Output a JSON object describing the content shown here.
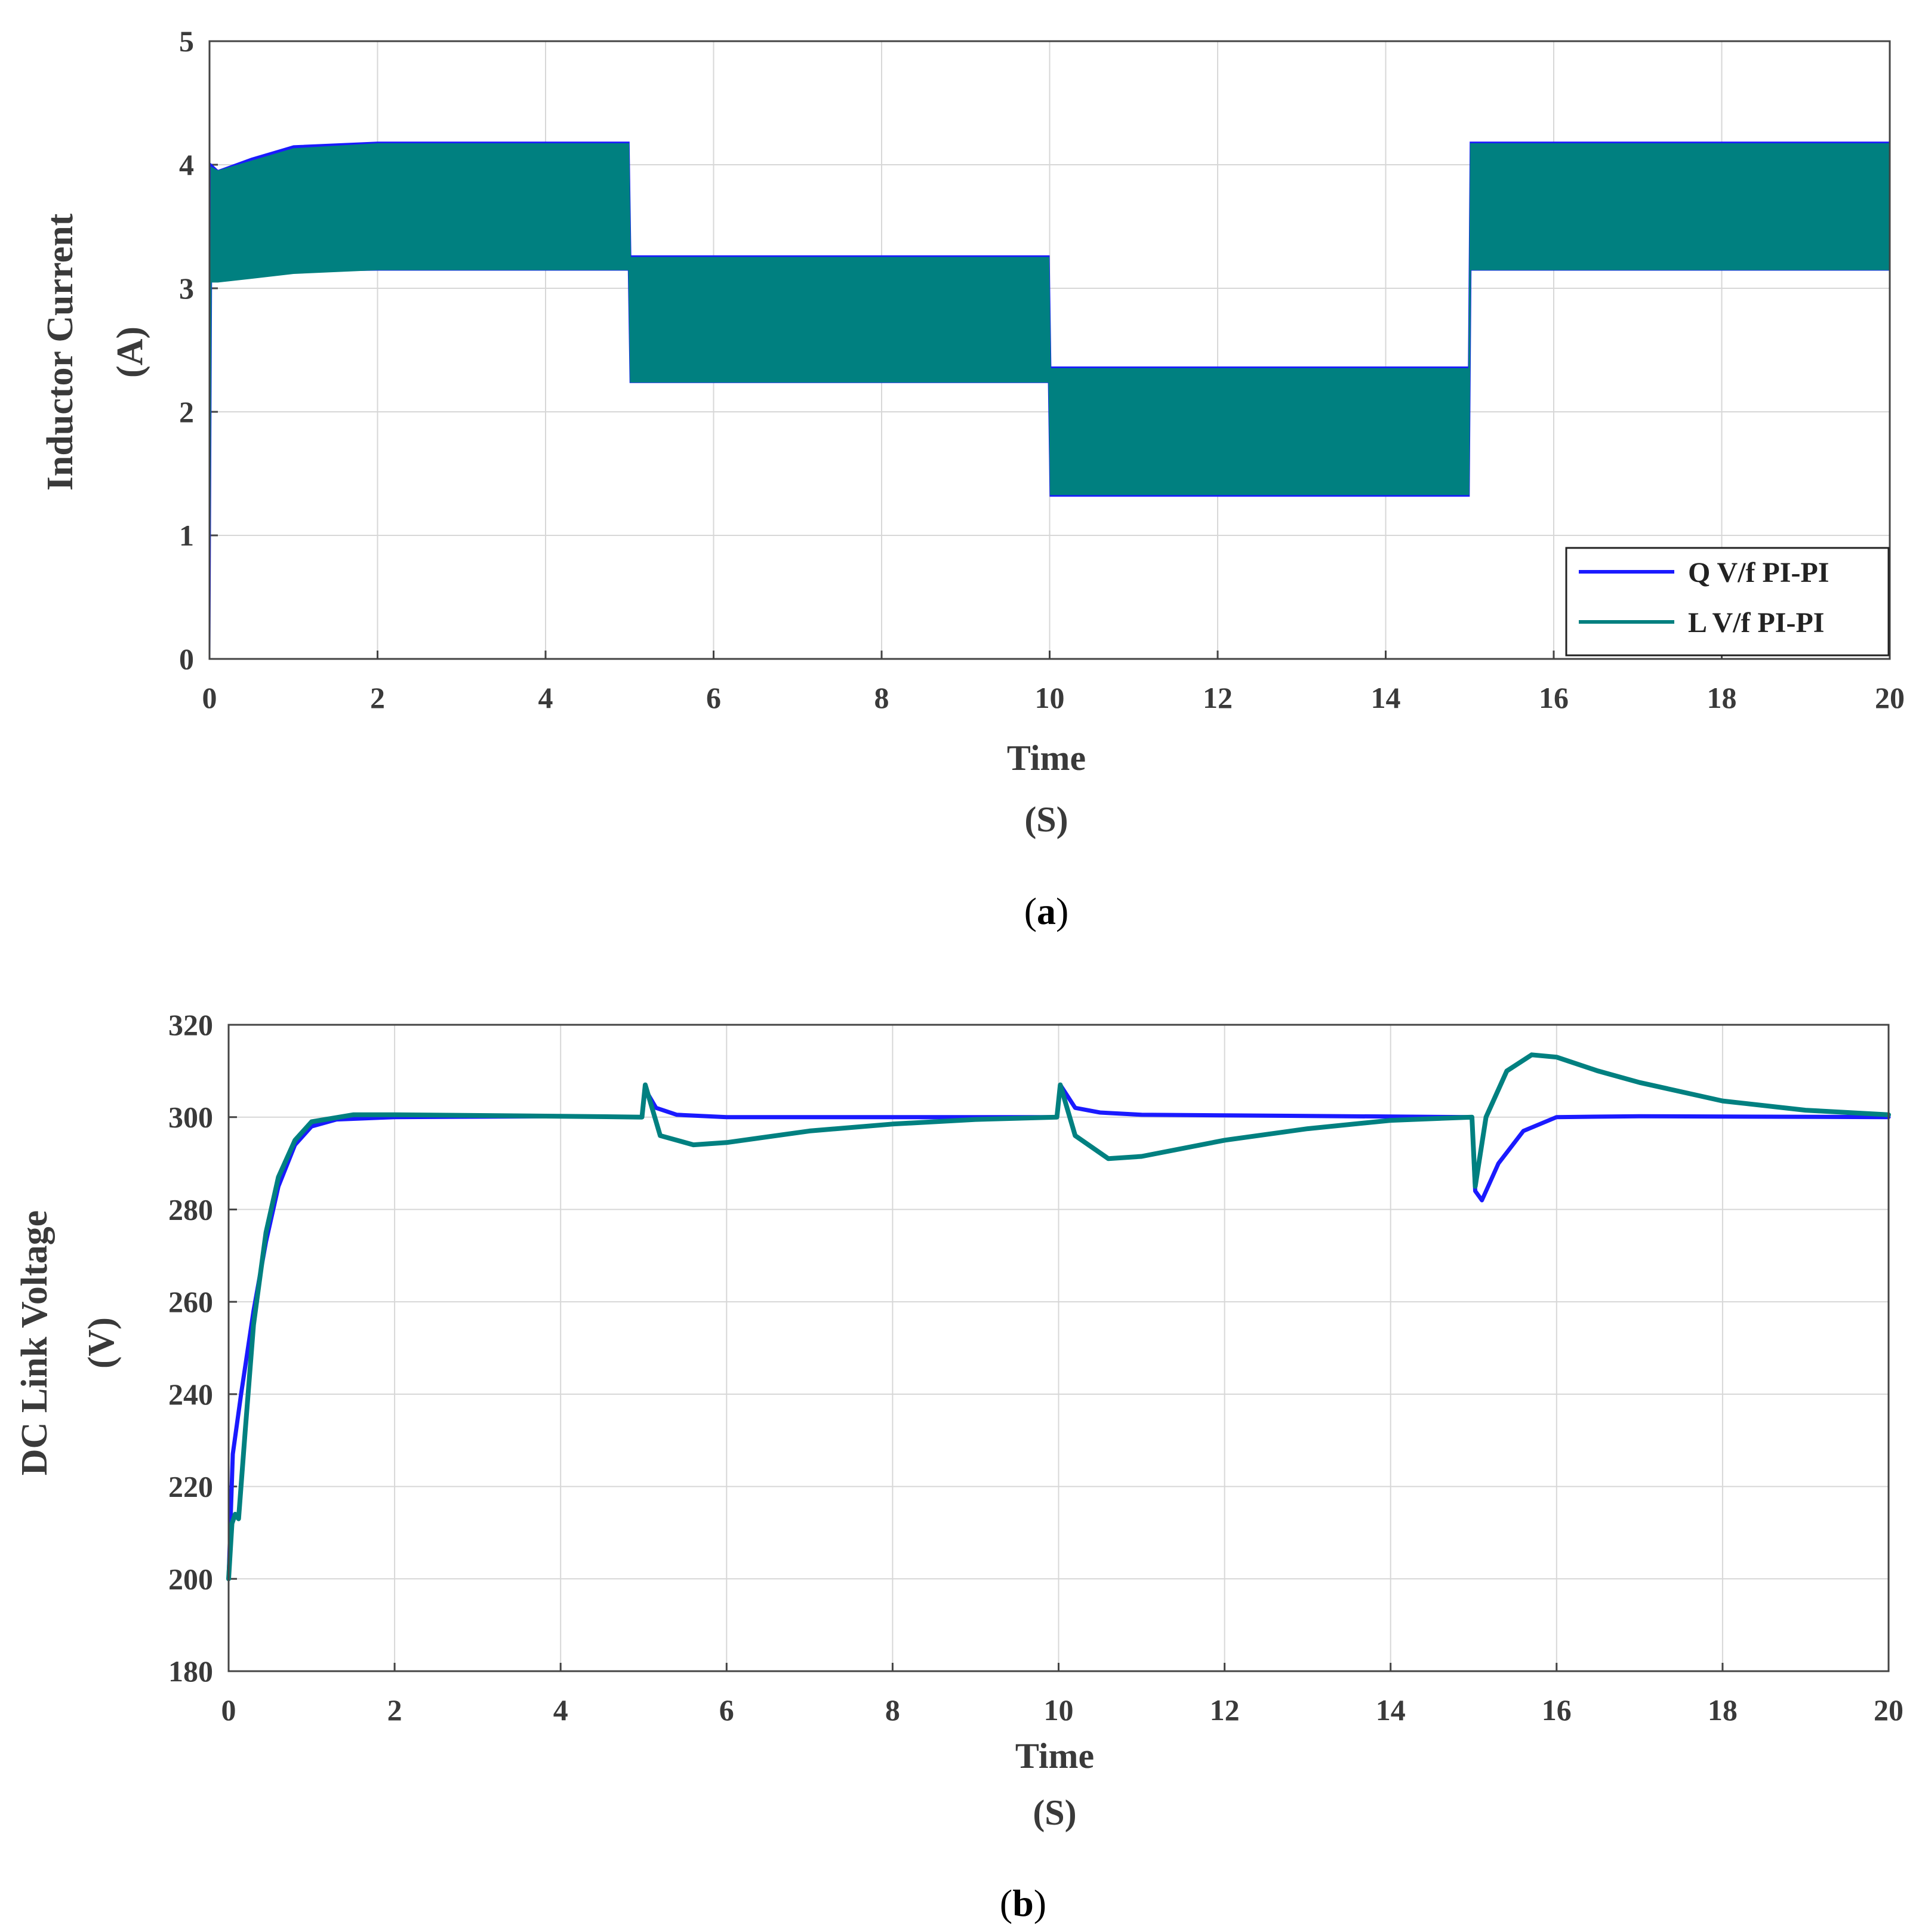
{
  "colors": {
    "q_series": "#1a1aff",
    "l_series": "#008080",
    "grid": "#d7d7d7",
    "axis": "#444444"
  },
  "chart_data": [
    {
      "id": "a",
      "type": "area",
      "caption_letter": "a",
      "caption_open": "(",
      "caption_close": ")",
      "xlabel": "Time",
      "xlabel_unit": "(S)",
      "ylabel": "Inductor Current",
      "ylabel_unit": "(A)",
      "xlim": [
        0,
        20
      ],
      "ylim": [
        0,
        5
      ],
      "xticks": [
        "0",
        "2",
        "4",
        "6",
        "8",
        "10",
        "12",
        "14",
        "16",
        "18",
        "20"
      ],
      "yticks": [
        "0",
        "1",
        "2",
        "3",
        "4",
        "5"
      ],
      "grid": true,
      "legend_position": "bottom-right",
      "legend": [
        "Q V/f PI-PI",
        "L V/f PI-PI"
      ],
      "series": [
        {
          "name": "Q V/f PI-PI",
          "color_key": "q_series",
          "note": "ripple band, lower and upper envelope",
          "x": [
            0,
            0.02,
            0.1,
            0.5,
            1,
            2,
            4,
            4.99,
            5.01,
            7,
            9.99,
            10.01,
            12,
            14.99,
            15.01,
            17,
            20
          ],
          "lower": [
            0,
            3.1,
            3.1,
            3.12,
            3.14,
            3.15,
            3.15,
            3.15,
            2.24,
            2.24,
            2.24,
            1.32,
            1.32,
            1.32,
            3.15,
            3.15,
            3.15
          ],
          "upper": [
            0,
            4.0,
            3.95,
            4.05,
            4.15,
            4.18,
            4.18,
            4.18,
            3.26,
            3.26,
            3.26,
            2.36,
            2.36,
            2.36,
            4.18,
            4.18,
            4.18
          ]
        },
        {
          "name": "L V/f PI-PI",
          "color_key": "l_series",
          "note": "ripple band, lower and upper envelope",
          "x": [
            0,
            0.02,
            0.1,
            0.5,
            1,
            2,
            4,
            4.99,
            5.01,
            7,
            9.99,
            10.01,
            12,
            14.99,
            15.01,
            17,
            20
          ],
          "lower": [
            0,
            3.05,
            3.05,
            3.08,
            3.12,
            3.15,
            3.15,
            3.15,
            2.24,
            2.24,
            2.24,
            1.33,
            1.33,
            1.33,
            3.15,
            3.15,
            3.15
          ],
          "upper": [
            0,
            3.98,
            3.95,
            4.03,
            4.13,
            4.17,
            4.17,
            4.17,
            3.25,
            3.25,
            3.25,
            2.35,
            2.35,
            2.35,
            4.17,
            4.17,
            4.17
          ]
        }
      ]
    },
    {
      "id": "b",
      "type": "line",
      "caption_letter": "b",
      "caption_open": "(",
      "caption_close": ")",
      "xlabel": "Time",
      "xlabel_unit": "(S)",
      "ylabel": "DC Link Voltage",
      "ylabel_unit": "(V)",
      "xlim": [
        0,
        20
      ],
      "ylim": [
        180,
        320
      ],
      "xticks": [
        "0",
        "2",
        "4",
        "6",
        "8",
        "10",
        "12",
        "14",
        "16",
        "18",
        "20"
      ],
      "yticks": [
        "180",
        "200",
        "220",
        "240",
        "260",
        "280",
        "300",
        "320"
      ],
      "grid": true,
      "series": [
        {
          "name": "Q V/f PI-PI",
          "color_key": "q_series",
          "x": [
            0,
            0.05,
            0.15,
            0.3,
            0.45,
            0.6,
            0.8,
            1.0,
            1.3,
            2,
            4,
            4.98,
            5.02,
            5.15,
            5.4,
            6,
            9.98,
            10.02,
            10.2,
            10.5,
            11,
            14.98,
            15.02,
            15.1,
            15.3,
            15.6,
            16,
            17,
            20
          ],
          "y": [
            200,
            227,
            240,
            258,
            273,
            285,
            294,
            298,
            299.5,
            300,
            300.2,
            300,
            306,
            302,
            300.5,
            300,
            300,
            307,
            302,
            301,
            300.5,
            300,
            284,
            282,
            290,
            297,
            300,
            300.2,
            300
          ]
        },
        {
          "name": "L V/f PI-PI",
          "color_key": "l_series",
          "x": [
            0,
            0.04,
            0.08,
            0.12,
            0.2,
            0.3,
            0.45,
            0.6,
            0.8,
            1.0,
            1.5,
            2,
            4,
            4.98,
            5.02,
            5.2,
            5.6,
            6,
            7,
            8,
            9,
            9.98,
            10.02,
            10.2,
            10.6,
            11,
            12,
            13,
            14,
            14.98,
            15.02,
            15.15,
            15.4,
            15.7,
            16,
            16.5,
            17,
            18,
            19,
            20
          ],
          "y": [
            200,
            212,
            214,
            213,
            232,
            255,
            275,
            287,
            295,
            299,
            300.5,
            300.5,
            300.2,
            300,
            307,
            296,
            294,
            294.5,
            297,
            298.5,
            299.5,
            300,
            307,
            296,
            291,
            291.5,
            295,
            297.5,
            299.3,
            300,
            285,
            300,
            310,
            313.5,
            313,
            310,
            307.5,
            303.5,
            301.5,
            300.5
          ]
        }
      ]
    }
  ]
}
